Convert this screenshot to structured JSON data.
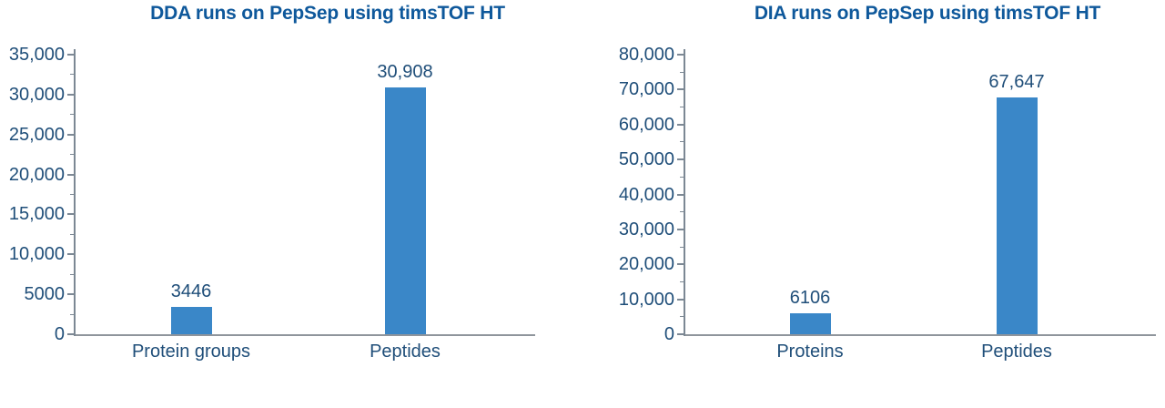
{
  "figure": {
    "description": "Two bar charts comparing identification numbers from DDA and DIA runs"
  },
  "colors": {
    "bar": "#3A87C8",
    "title": "#0E589B",
    "label": "#1F4E79",
    "axis": "#7C8894",
    "baseline": "#8F959C",
    "background": "#FFFFFF"
  },
  "chart_data": [
    {
      "type": "bar",
      "title": "DDA runs on PepSep using timsTOF HT",
      "categories": [
        "Protein groups",
        "Peptides"
      ],
      "values": [
        3446,
        30908
      ],
      "value_labels": [
        "3446",
        "30,908"
      ],
      "xlabel": "",
      "ylabel": "",
      "ylim": [
        0,
        35000
      ],
      "minor_tick_step": 2500,
      "grid": false,
      "legend": "none",
      "yticks": [
        {
          "label": "35,000",
          "value": 35000
        },
        {
          "label": "30,000",
          "value": 30000
        },
        {
          "label": "25,000",
          "value": 25000
        },
        {
          "label": "20,000",
          "value": 20000
        },
        {
          "label": "15,000",
          "value": 15000
        },
        {
          "label": "10,000",
          "value": 10000
        },
        {
          "label": "5000",
          "value": 5000
        },
        {
          "label": "0",
          "value": 0
        }
      ]
    },
    {
      "type": "bar",
      "title": "DIA runs on PepSep using timsTOF HT",
      "categories": [
        "Proteins",
        "Peptides"
      ],
      "values": [
        6106,
        67647
      ],
      "value_labels": [
        "6106",
        "67,647"
      ],
      "xlabel": "",
      "ylabel": "",
      "ylim": [
        0,
        80000
      ],
      "minor_tick_step": 5000,
      "grid": false,
      "legend": "none",
      "yticks": [
        {
          "label": "80,000",
          "value": 80000
        },
        {
          "label": "70,000",
          "value": 70000
        },
        {
          "label": "60,000",
          "value": 60000
        },
        {
          "label": "50,000",
          "value": 50000
        },
        {
          "label": "40,000",
          "value": 40000
        },
        {
          "label": "30,000",
          "value": 30000
        },
        {
          "label": "20,000",
          "value": 20000
        },
        {
          "label": "10,000",
          "value": 10000
        },
        {
          "label": "0",
          "value": 0
        }
      ]
    }
  ]
}
